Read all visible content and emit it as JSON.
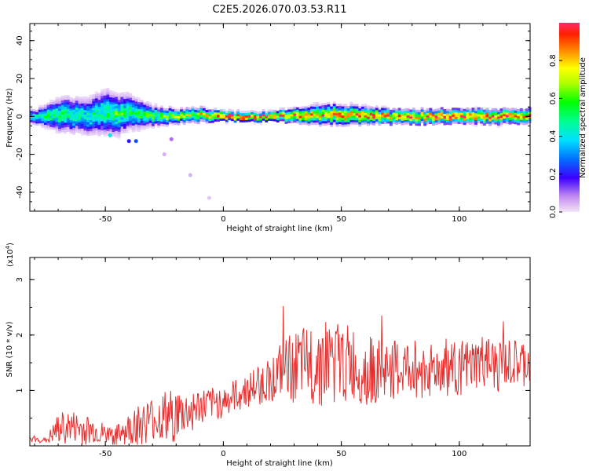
{
  "title": "C2E5.2026.070.03.53.R11",
  "chart_data": [
    {
      "type": "heatmap",
      "xlabel": "Height of straight line (km)",
      "ylabel": "Frequency (Hz)",
      "xlim": [
        -82,
        130
      ],
      "ylim": [
        -50,
        49
      ],
      "x_ticks": [
        -50,
        0,
        50,
        100
      ],
      "y_ticks": [
        -40,
        -20,
        0,
        20,
        40
      ],
      "x_tick_labels": [
        "-50",
        "0",
        "50",
        "100"
      ],
      "y_tick_labels": [
        "-40",
        "-20",
        "0",
        "20",
        "40"
      ],
      "colorbar": {
        "label": "Normalized spectral amplitude",
        "range": [
          0,
          1
        ],
        "ticks": [
          0.0,
          0.2,
          0.4,
          0.6,
          0.8
        ],
        "tick_labels": [
          "0.0",
          "0.2",
          "0.4",
          "0.6",
          "0.8"
        ]
      },
      "band_profile": [
        {
          "x": -80,
          "center": 0,
          "halfwidth": 3,
          "peak": 0.45
        },
        {
          "x": -70,
          "center": 1,
          "halfwidth": 7,
          "peak": 0.5
        },
        {
          "x": -60,
          "center": 0,
          "halfwidth": 7,
          "peak": 0.45
        },
        {
          "x": -50,
          "center": 2,
          "halfwidth": 9,
          "peak": 0.5
        },
        {
          "x": -45,
          "center": 1,
          "halfwidth": 8,
          "peak": 0.55
        },
        {
          "x": -40,
          "center": 2,
          "halfwidth": 7,
          "peak": 0.5
        },
        {
          "x": -30,
          "center": 0,
          "halfwidth": 4,
          "peak": 0.55
        },
        {
          "x": -20,
          "center": 0,
          "halfwidth": 3,
          "peak": 0.65
        },
        {
          "x": -10,
          "center": 1,
          "halfwidth": 3,
          "peak": 0.7
        },
        {
          "x": 0,
          "center": 0,
          "halfwidth": 2,
          "peak": 0.95
        },
        {
          "x": 20,
          "center": 0,
          "halfwidth": 2,
          "peak": 0.9
        },
        {
          "x": 40,
          "center": 1,
          "halfwidth": 4,
          "peak": 0.8
        },
        {
          "x": 50,
          "center": 1,
          "halfwidth": 4,
          "peak": 0.85
        },
        {
          "x": 70,
          "center": 0,
          "halfwidth": 3,
          "peak": 0.85
        },
        {
          "x": 90,
          "center": 0,
          "halfwidth": 3,
          "peak": 0.9
        },
        {
          "x": 110,
          "center": 0,
          "halfwidth": 3,
          "peak": 0.9
        },
        {
          "x": 129,
          "center": 0,
          "halfwidth": 3,
          "peak": 0.85
        }
      ],
      "outliers": [
        {
          "x": -48,
          "y": -10,
          "value": 0.4
        },
        {
          "x": -40,
          "y": -13,
          "value": 0.2
        },
        {
          "x": -37,
          "y": -13,
          "value": 0.25
        },
        {
          "x": -22,
          "y": -12,
          "value": 0.1
        },
        {
          "x": -25,
          "y": -20,
          "value": 0.05
        },
        {
          "x": -14,
          "y": -31,
          "value": 0.05
        },
        {
          "x": -6,
          "y": -43,
          "value": 0.03
        }
      ]
    },
    {
      "type": "line",
      "xlabel": "Height of straight line (km)",
      "ylabel": "SNR (10 * v/v)",
      "y_multiplier_label": "(x10",
      "y_multiplier_exp": "4",
      "xlim": [
        -82,
        130
      ],
      "ylim": [
        0,
        3.4
      ],
      "x_ticks": [
        -50,
        0,
        50,
        100
      ],
      "y_ticks": [
        1,
        2,
        3
      ],
      "x_tick_labels": [
        "-50",
        "0",
        "50",
        "100"
      ],
      "y_tick_labels": [
        "1",
        "2",
        "3"
      ],
      "series": [
        {
          "color": "#e53030",
          "x": [
            -82,
            -75,
            -70,
            -65,
            -60,
            -55,
            -50,
            -45,
            -40,
            -35,
            -30,
            -25,
            -20,
            -15,
            -10,
            -5,
            0,
            5,
            10,
            15,
            20,
            25,
            30,
            35,
            40,
            45,
            50,
            55,
            60,
            65,
            70,
            75,
            80,
            85,
            90,
            95,
            100,
            105,
            110,
            115,
            120,
            125,
            130
          ],
          "y": [
            0.12,
            0.1,
            0.3,
            0.35,
            0.3,
            0.28,
            0.2,
            0.18,
            0.3,
            0.4,
            0.5,
            0.5,
            0.55,
            0.6,
            0.7,
            0.75,
            0.8,
            0.9,
            1.0,
            1.1,
            1.2,
            1.35,
            1.4,
            1.45,
            1.5,
            1.55,
            1.5,
            1.45,
            1.35,
            1.35,
            1.35,
            1.35,
            1.4,
            1.35,
            1.4,
            1.35,
            1.4,
            1.4,
            1.5,
            1.4,
            1.45,
            1.45,
            1.5
          ],
          "noise": [
            0.05,
            0.05,
            0.3,
            0.3,
            0.3,
            0.25,
            0.2,
            0.2,
            0.3,
            0.4,
            0.4,
            0.5,
            0.5,
            0.4,
            0.35,
            0.3,
            0.3,
            0.3,
            0.3,
            0.4,
            0.4,
            0.55,
            0.65,
            0.7,
            0.8,
            0.8,
            0.75,
            0.7,
            0.65,
            0.6,
            0.55,
            0.55,
            0.55,
            0.55,
            0.5,
            0.5,
            0.5,
            0.5,
            0.5,
            0.5,
            0.45,
            0.45,
            0.45
          ]
        }
      ]
    }
  ]
}
